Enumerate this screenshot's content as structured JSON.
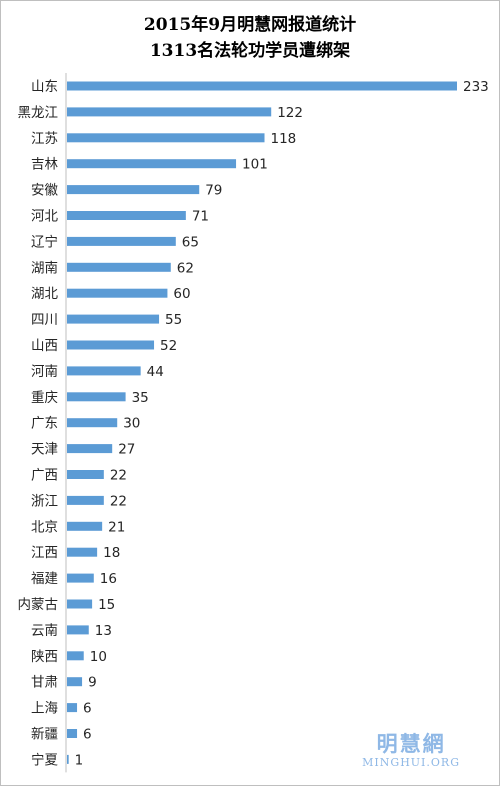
{
  "chart_data": {
    "type": "bar",
    "orientation": "horizontal",
    "title_lines": [
      "2015年9月明慧网报道统计",
      "1313名法轮功学员遭绑架"
    ],
    "categories": [
      "山东",
      "黑龙江",
      "江苏",
      "吉林",
      "安徽",
      "河北",
      "辽宁",
      "湖南",
      "湖北",
      "四川",
      "山西",
      "河南",
      "重庆",
      "广东",
      "天津",
      "广西",
      "浙江",
      "北京",
      "江西",
      "福建",
      "内蒙古",
      "云南",
      "陕西",
      "甘肃",
      "上海",
      "新疆",
      "宁夏"
    ],
    "values": [
      233,
      122,
      118,
      101,
      79,
      71,
      65,
      62,
      60,
      55,
      52,
      44,
      35,
      30,
      27,
      22,
      22,
      21,
      18,
      16,
      15,
      13,
      10,
      9,
      6,
      6,
      1
    ],
    "bar_color": "#5b9bd5",
    "grid": false,
    "legend": "none",
    "xlim": [
      0,
      233
    ]
  },
  "watermark": {
    "logo_text": "明慧網",
    "url_text": "MINGHUI.ORG"
  }
}
